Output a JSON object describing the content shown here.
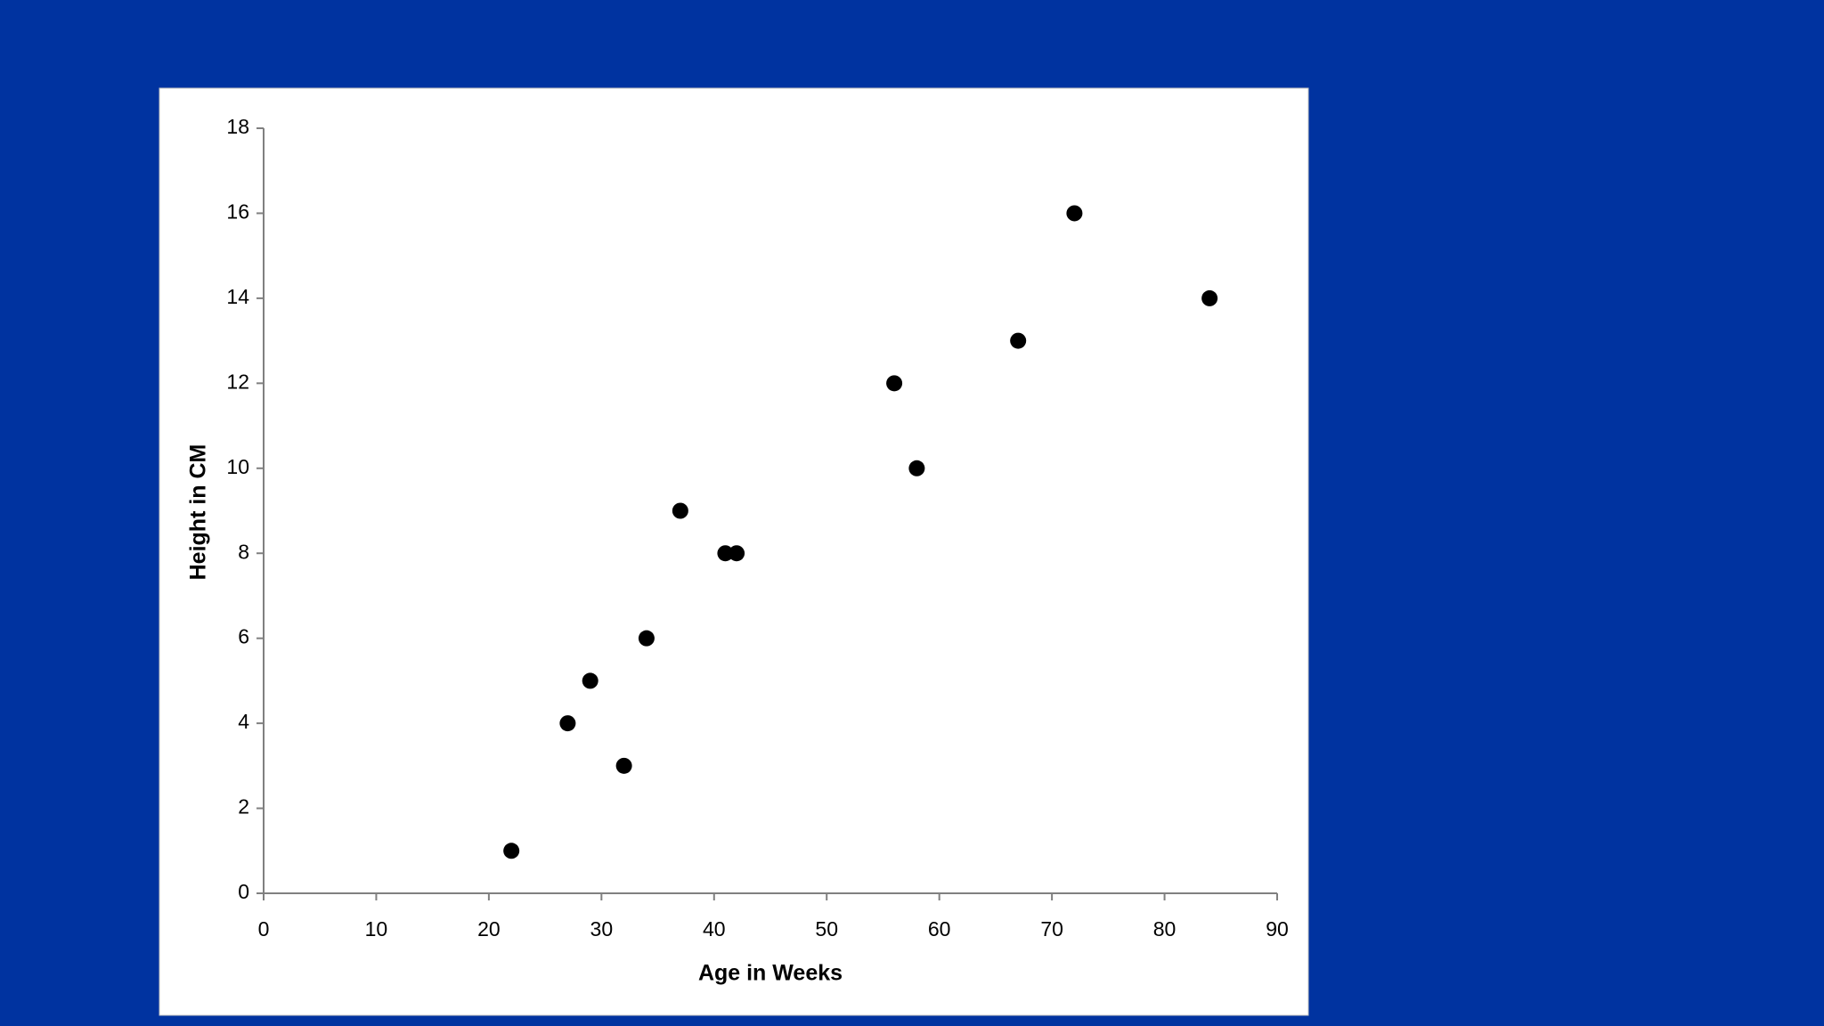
{
  "chart_data": {
    "type": "scatter",
    "x_label": "Age in Weeks",
    "y_label": "Height in CM",
    "x": [
      22,
      27,
      29,
      32,
      34,
      37,
      41,
      42,
      56,
      58,
      67,
      72,
      84
    ],
    "values": [
      1,
      4,
      5,
      3,
      6,
      9,
      8,
      8,
      12,
      10,
      13,
      16,
      14
    ],
    "color": "#000000",
    "xlim": [
      0,
      90
    ],
    "xticks": [
      0,
      10,
      20,
      30,
      40,
      50,
      60,
      70,
      80,
      90
    ],
    "ylim": [
      0,
      18
    ],
    "yticks": [
      0,
      2,
      4,
      6,
      8,
      10,
      12,
      14,
      16,
      18
    ],
    "grid": false
  }
}
